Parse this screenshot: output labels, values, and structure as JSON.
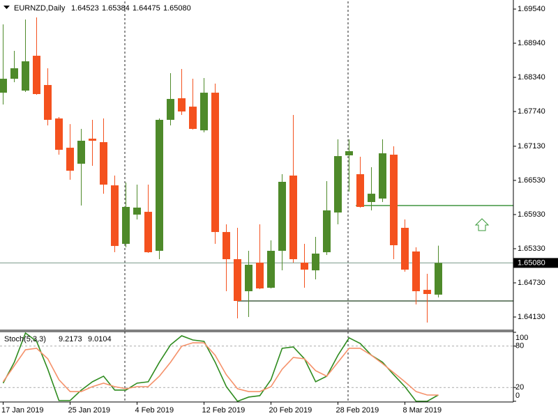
{
  "chart_data": {
    "type": "candlestick",
    "header": {
      "symbol": "EURNZD,Daily",
      "quote": [
        "1.64523",
        "1.65384",
        "1.64475",
        "1.65080"
      ]
    },
    "categories": [
      "17 Jan 2019",
      null,
      null,
      null,
      null,
      null,
      "25 Jan 2019",
      null,
      null,
      null,
      null,
      null,
      "4 Feb 2019",
      null,
      null,
      null,
      null,
      null,
      "12 Feb 2019",
      null,
      null,
      null,
      null,
      null,
      "20 Feb 2019",
      null,
      null,
      null,
      null,
      null,
      "28 Feb 2019",
      null,
      null,
      null,
      null,
      null,
      "8 Mar 2019",
      null,
      null,
      null
    ],
    "open": [
      1.68071,
      1.68316,
      1.68108,
      1.6872,
      1.68206,
      1.67618,
      1.67104,
      1.66823,
      1.67263,
      1.67202,
      1.66443,
      1.65415,
      1.65929,
      1.65978,
      1.65293,
      1.67594,
      1.67973,
      1.67826,
      1.6741,
      1.68071,
      1.65623,
      1.65146,
      1.64583,
      1.65085,
      1.64644,
      1.65293,
      1.66615,
      1.65085,
      1.6495,
      1.65268,
      1.65966,
      1.6697,
      1.66639,
      1.6615,
      1.66211,
      1.66982,
      1.65697,
      1.65281,
      1.64607,
      1.64523
    ],
    "high": [
      1.69271,
      1.68806,
      1.69356,
      1.69393,
      1.685,
      1.67643,
      1.6752,
      1.67435,
      1.67594,
      1.67618,
      1.66615,
      1.66492,
      1.66456,
      1.66456,
      1.67618,
      1.68414,
      1.68487,
      1.68316,
      1.68328,
      1.6823,
      1.65758,
      1.65697,
      1.65293,
      1.65758,
      1.65476,
      1.66639,
      1.6768,
      1.65415,
      1.65538,
      1.66517,
      1.67251,
      1.67251,
      1.66945,
      1.66762,
      1.67251,
      1.67129,
      1.65844,
      1.65354,
      1.64889,
      1.65384
    ],
    "low": [
      1.67863,
      1.68255,
      1.68084,
      1.68035,
      1.67496,
      1.66982,
      1.66541,
      1.66088,
      1.66786,
      1.66296,
      1.65268,
      1.65354,
      1.65844,
      1.65256,
      1.65146,
      1.67496,
      1.6768,
      1.67423,
      1.67374,
      1.65415,
      1.64583,
      1.64106,
      1.6413,
      1.6462,
      1.64632,
      1.6495,
      1.65085,
      1.64644,
      1.64791,
      1.65219,
      1.65758,
      1.66333,
      1.66052,
      1.66003,
      1.6615,
      1.65146,
      1.64926,
      1.6435,
      1.64032,
      1.64475
    ],
    "close": [
      1.68316,
      1.685,
      1.68622,
      1.68047,
      1.67594,
      1.67068,
      1.667,
      1.67227,
      1.67227,
      1.66456,
      1.65378,
      1.66064,
      1.66052,
      1.65268,
      1.67594,
      1.67961,
      1.67741,
      1.67435,
      1.68071,
      1.65623,
      1.65146,
      1.64412,
      1.65048,
      1.64632,
      1.65293,
      1.66505,
      1.65146,
      1.64962,
      1.65244,
      1.66003,
      1.66957,
      1.67043,
      1.66064,
      1.66296,
      1.67006,
      1.65391,
      1.64962,
      1.64583,
      1.64534,
      1.6508
    ],
    "up_color": "#4e8a2a",
    "down_color": "#f4511e",
    "ylim": [
      1.6391,
      1.69675
    ],
    "yticks": [
      {
        "value": 1.6954,
        "label": "1.69540"
      },
      {
        "value": 1.6894,
        "label": "1.68940"
      },
      {
        "value": 1.6834,
        "label": "1.68340"
      },
      {
        "value": 1.6774,
        "label": "1.67740"
      },
      {
        "value": 1.6713,
        "label": "1.67130"
      },
      {
        "value": 1.6653,
        "label": "1.66530"
      },
      {
        "value": 1.6593,
        "label": "1.65930"
      },
      {
        "value": 1.6533,
        "label": "1.65330"
      },
      {
        "value": 1.6473,
        "label": "1.64730"
      },
      {
        "value": 1.6413,
        "label": "1.64130"
      }
    ],
    "current_price": {
      "value": 1.6508,
      "label": "1.65080"
    },
    "hlines": [
      {
        "value": 1.66088,
        "start": 31.6,
        "color": "#2e8b2e"
      },
      {
        "value": 1.64412,
        "start": 21,
        "color": "#1f3f1f"
      }
    ],
    "indicator": {
      "title": "Stoch(5,3,3)",
      "ylim": [
        0,
        100
      ],
      "yticks": [
        0,
        20,
        80,
        100
      ],
      "series": [
        {
          "color": "#2e8b1e",
          "values": [
            26.3,
            56.6,
            99,
            86.9,
            46.5,
            1,
            1,
            16.2,
            28.3,
            36.4,
            16.2,
            16.2,
            26.3,
            28.3,
            56.6,
            81.8,
            95,
            88.9,
            86.9,
            56.6,
            21.2,
            0,
            6.1,
            8.1,
            31.3,
            76.8,
            78.8,
            61.6,
            28.3,
            36.4,
            66.7,
            92,
            83.8,
            66.7,
            56.6,
            38.4,
            21.2,
            0,
            0,
            9.2173
          ]
        },
        {
          "color": "#f5916a",
          "values": [
            28.3,
            51.5,
            74.7,
            76.8,
            61.6,
            31.3,
            14.1,
            14.1,
            21.2,
            26.3,
            21.2,
            18.2,
            21.2,
            21.2,
            36.4,
            56.6,
            79.8,
            84.8,
            84.8,
            66.7,
            38.4,
            18.2,
            14.1,
            14.1,
            21.2,
            46.5,
            63.6,
            61.6,
            44.4,
            36.4,
            56.6,
            76.8,
            76.8,
            66.7,
            54.5,
            41.4,
            28.3,
            14.1,
            9.1,
            9.0104
          ]
        }
      ]
    }
  }
}
